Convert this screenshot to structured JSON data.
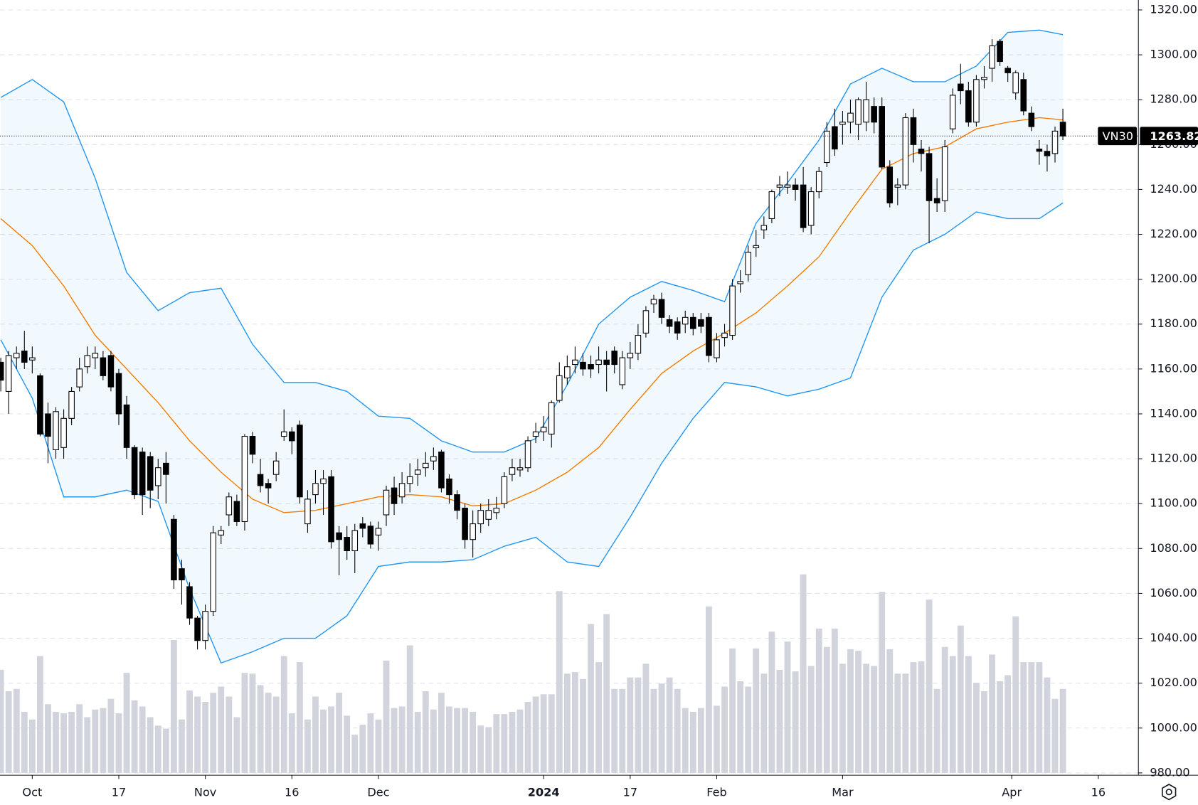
{
  "chart_data": {
    "type": "candlestick",
    "symbol": "VN30",
    "xlim": [
      -0.1,
      144.6
    ],
    "xticks": [
      {
        "value": 4,
        "label": "Oct"
      },
      {
        "value": 15,
        "label": "17"
      },
      {
        "value": 26,
        "label": "Nov"
      },
      {
        "value": 37,
        "label": "16"
      },
      {
        "value": 48,
        "label": "Dec"
      },
      {
        "value": 69,
        "label": "2024",
        "bold": true
      },
      {
        "value": 80,
        "label": "17"
      },
      {
        "value": 91,
        "label": "Feb"
      },
      {
        "value": 107,
        "label": "Mar"
      },
      {
        "value": 128.5,
        "label": "Apr"
      },
      {
        "value": 139.5,
        "label": "16"
      }
    ],
    "ylim": [
      980,
      1320
    ],
    "yticks": [
      {
        "value": 980,
        "label": "980.00"
      },
      {
        "value": 1000,
        "label": "1000.00"
      },
      {
        "value": 1020,
        "label": "1020.00"
      },
      {
        "value": 1040,
        "label": "1040.00"
      },
      {
        "value": 1060,
        "label": "1060.00"
      },
      {
        "value": 1080,
        "label": "1080.00"
      },
      {
        "value": 1100,
        "label": "1100.00"
      },
      {
        "value": 1120,
        "label": "1120.00"
      },
      {
        "value": 1140,
        "label": "1140.00"
      },
      {
        "value": 1160,
        "label": "1160.00"
      },
      {
        "value": 1180,
        "label": "1180.00"
      },
      {
        "value": 1200,
        "label": "1200.00"
      },
      {
        "value": 1220,
        "label": "1220.00"
      },
      {
        "value": 1240,
        "label": "1240.00"
      },
      {
        "value": 1260,
        "label": "1260.00"
      },
      {
        "value": 1280,
        "label": "1280.00"
      },
      {
        "value": 1300,
        "label": "1300.00"
      },
      {
        "value": 1320,
        "label": "1320.00"
      }
    ],
    "grid": true,
    "up_color": "#ffffff",
    "down_color": "#000000",
    "wick_color": "#000000",
    "open": [
      1163,
      1150,
      1165,
      1168,
      1164,
      1157,
      1140,
      1124,
      1125,
      1138,
      1152,
      1161,
      1165,
      1165,
      1166,
      1158,
      1144,
      1125,
      1123,
      1121,
      1108,
      1118,
      1093,
      1071,
      1063,
      1049,
      1039,
      1052,
      1086,
      1095,
      1101,
      1092,
      1130,
      1113,
      1109,
      1113,
      1130,
      1132,
      1135,
      1091,
      1104,
      1109,
      1112,
      1087,
      1085,
      1079,
      1091,
      1090,
      1086,
      1095,
      1107,
      1103,
      1109,
      1113,
      1116,
      1119,
      1123,
      1111,
      1104,
      1098,
      1084,
      1091,
      1093,
      1096,
      1100,
      1113,
      1115,
      1116,
      1130,
      1132,
      1131,
      1146,
      1156,
      1162,
      1163,
      1162,
      1162,
      1164,
      1168,
      1153,
      1165,
      1167,
      1176,
      1189,
      1191,
      1182,
      1181,
      1180,
      1183,
      1182,
      1183,
      1165,
      1174,
      1175,
      1198,
      1202,
      1214,
      1222,
      1227,
      1241,
      1241,
      1242,
      1242,
      1224,
      1239,
      1252,
      1268,
      1269,
      1270,
      1269,
      1270,
      1277,
      1277,
      1250,
      1241,
      1242,
      1272,
      1258,
      1256,
      1236,
      1235,
      1267,
      1287,
      1284,
      1270,
      1289,
      1294,
      1306,
      1294,
      1283,
      1289,
      1274,
      1258,
      1257,
      1256,
      1270
    ],
    "high": [
      1165,
      1168,
      1170,
      1177,
      1170,
      1158,
      1145,
      1143,
      1142,
      1152,
      1165,
      1170,
      1170,
      1168,
      1168,
      1160,
      1148,
      1126,
      1125,
      1123,
      1120,
      1123,
      1095,
      1075,
      1065,
      1050,
      1055,
      1090,
      1090,
      1105,
      1104,
      1131,
      1132,
      1120,
      1111,
      1123,
      1142,
      1134,
      1137,
      1106,
      1115,
      1115,
      1115,
      1090,
      1090,
      1091,
      1094,
      1092,
      1092,
      1108,
      1112,
      1114,
      1118,
      1120,
      1123,
      1125,
      1124,
      1113,
      1106,
      1100,
      1097,
      1100,
      1102,
      1103,
      1114,
      1120,
      1120,
      1130,
      1136,
      1139,
      1146,
      1163,
      1166,
      1170,
      1167,
      1166,
      1170,
      1168,
      1170,
      1168,
      1172,
      1180,
      1188,
      1193,
      1194,
      1184,
      1183,
      1186,
      1185,
      1185,
      1185,
      1176,
      1180,
      1200,
      1204,
      1215,
      1222,
      1228,
      1240,
      1246,
      1248,
      1245,
      1250,
      1241,
      1250,
      1270,
      1276,
      1275,
      1280,
      1281,
      1288,
      1281,
      1281,
      1253,
      1245,
      1274,
      1276,
      1262,
      1259,
      1245,
      1262,
      1285,
      1296,
      1288,
      1291,
      1295,
      1307,
      1307,
      1295,
      1293,
      1292,
      1277,
      1262,
      1260,
      1268,
      1276
    ],
    "low": [
      1150,
      1140,
      1160,
      1160,
      1158,
      1130,
      1118,
      1120,
      1120,
      1135,
      1150,
      1158,
      1160,
      1155,
      1150,
      1135,
      1120,
      1102,
      1095,
      1098,
      1102,
      1100,
      1062,
      1055,
      1046,
      1035,
      1035,
      1050,
      1082,
      1090,
      1090,
      1088,
      1118,
      1105,
      1100,
      1110,
      1128,
      1122,
      1100,
      1087,
      1100,
      1095,
      1080,
      1068,
      1075,
      1069,
      1085,
      1080,
      1079,
      1090,
      1095,
      1100,
      1105,
      1108,
      1112,
      1115,
      1105,
      1100,
      1093,
      1080,
      1076,
      1087,
      1090,
      1093,
      1098,
      1110,
      1112,
      1114,
      1127,
      1128,
      1125,
      1145,
      1153,
      1158,
      1157,
      1156,
      1158,
      1150,
      1158,
      1151,
      1160,
      1164,
      1174,
      1185,
      1180,
      1176,
      1173,
      1176,
      1175,
      1176,
      1163,
      1163,
      1170,
      1173,
      1194,
      1199,
      1210,
      1218,
      1225,
      1237,
      1238,
      1235,
      1221,
      1220,
      1236,
      1250,
      1255,
      1260,
      1265,
      1262,
      1266,
      1265,
      1249,
      1232,
      1233,
      1240,
      1252,
      1248,
      1216,
      1230,
      1230,
      1265,
      1278,
      1268,
      1268,
      1285,
      1288,
      1295,
      1288,
      1280,
      1273,
      1266,
      1251,
      1248,
      1252,
      1262
    ],
    "close": [
      1155,
      1166,
      1167,
      1163,
      1165,
      1131,
      1130,
      1141,
      1138,
      1150,
      1160,
      1166,
      1167,
      1157,
      1152,
      1140,
      1125,
      1104,
      1104,
      1106,
      1116,
      1113,
      1066,
      1066,
      1049,
      1039,
      1052,
      1087,
      1088,
      1103,
      1092,
      1130,
      1122,
      1108,
      1107,
      1119,
      1132,
      1128,
      1103,
      1102,
      1109,
      1111,
      1083,
      1084,
      1079,
      1088,
      1089,
      1082,
      1089,
      1106,
      1100,
      1109,
      1112,
      1115,
      1118,
      1121,
      1107,
      1104,
      1097,
      1084,
      1091,
      1097,
      1097,
      1098,
      1112,
      1116,
      1116,
      1128,
      1132,
      1134,
      1145,
      1157,
      1161,
      1164,
      1160,
      1160,
      1164,
      1162,
      1162,
      1165,
      1167,
      1175,
      1186,
      1191,
      1183,
      1179,
      1176,
      1183,
      1178,
      1179,
      1166,
      1173,
      1176,
      1197,
      1199,
      1212,
      1215,
      1224,
      1239,
      1242,
      1242,
      1240,
      1223,
      1239,
      1248,
      1266,
      1258,
      1270,
      1274,
      1280,
      1280,
      1270,
      1250,
      1234,
      1242,
      1272,
      1260,
      1256,
      1235,
      1234,
      1259,
      1282,
      1284,
      1270,
      1289,
      1290,
      1304,
      1297,
      1292,
      1292,
      1275,
      1268,
      1257,
      1255,
      1266,
      1263.82
    ],
    "volume_ylim": [
      0,
      999
    ],
    "volume_color": "#d1d4dc",
    "volume": [
      135,
      107,
      110,
      80,
      70,
      153,
      90,
      80,
      78,
      80,
      90,
      73,
      83,
      85,
      97,
      78,
      131,
      95,
      87,
      73,
      62,
      58,
      174,
      70,
      108,
      100,
      93,
      105,
      113,
      100,
      73,
      131,
      130,
      115,
      105,
      100,
      153,
      78,
      145,
      70,
      100,
      83,
      87,
      105,
      75,
      50,
      63,
      78,
      70,
      147,
      85,
      87,
      167,
      80,
      107,
      83,
      105,
      87,
      85,
      85,
      80,
      62,
      60,
      77,
      77,
      80,
      83,
      93,
      100,
      103,
      103,
      238,
      130,
      132,
      123,
      195,
      145,
      208,
      110,
      110,
      125,
      125,
      143,
      110,
      117,
      125,
      110,
      85,
      80,
      85,
      218,
      88,
      113,
      163,
      120,
      113,
      163,
      130,
      185,
      135,
      172,
      133,
      260,
      140,
      189,
      165,
      189,
      143,
      162,
      160,
      143,
      140,
      237,
      162,
      130,
      130,
      145,
      146,
      227,
      110,
      165,
      153,
      193,
      153,
      118,
      107,
      155,
      120,
      128,
      205,
      145,
      145,
      145,
      125,
      97,
      110
    ],
    "bands": {
      "x": [
        0,
        4,
        8,
        12,
        16,
        20,
        24,
        28,
        32,
        36,
        40,
        44,
        48,
        52,
        56,
        60,
        64,
        68,
        72,
        76,
        80,
        84,
        88,
        92,
        96,
        100,
        104,
        108,
        112,
        116,
        120,
        124,
        128,
        132,
        135
      ],
      "fill": "rgba(33,150,243,0.06)",
      "upper": {
        "color": "#2196f3",
        "values": [
          1281,
          1289,
          1279,
          1245,
          1203,
          1186,
          1194,
          1196,
          1171,
          1154,
          1154,
          1150,
          1139,
          1138,
          1128,
          1123,
          1123,
          1129,
          1153,
          1180,
          1192,
          1199,
          1195,
          1190,
          1225,
          1243,
          1262,
          1287,
          1294,
          1288,
          1288,
          1295,
          1310,
          1311,
          1309
        ]
      },
      "middle": {
        "color": "#f57c00",
        "values": [
          1227,
          1215,
          1197,
          1175,
          1160,
          1145,
          1128,
          1114,
          1102,
          1096,
          1097,
          1100,
          1103,
          1104,
          1103,
          1099,
          1100,
          1106,
          1114,
          1125,
          1142,
          1158,
          1168,
          1176,
          1185,
          1197,
          1210,
          1230,
          1249,
          1256,
          1259,
          1267,
          1270,
          1272,
          1271
        ]
      },
      "lower": {
        "color": "#2196f3",
        "values": [
          1173,
          1147,
          1103,
          1103,
          1106,
          1101,
          1062,
          1029,
          1034,
          1040,
          1040,
          1050,
          1072,
          1074,
          1074,
          1075,
          1081,
          1085,
          1074,
          1072,
          1094,
          1118,
          1138,
          1154,
          1152,
          1148,
          1151,
          1156,
          1192,
          1213,
          1220,
          1230,
          1227,
          1227,
          1234
        ]
      }
    }
  }
}
